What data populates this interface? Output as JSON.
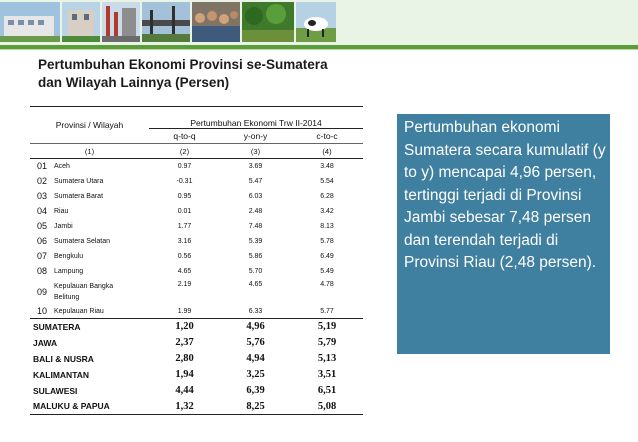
{
  "slide": {
    "title_line1": "Pertumbuhan Ekonomi Provinsi se-Sumatera",
    "title_line2": "dan Wilayah Lainnya (Persen)"
  },
  "table": {
    "col_region": "Provinsi / Wilayah",
    "col_group": "Pertumbuhan Ekonomi Trw II-2014",
    "sub_cols": [
      "q-to-q",
      "y-on-y",
      "c-to-c"
    ],
    "col_numbers": [
      "(1)",
      "(2)",
      "(3)",
      "(4)"
    ],
    "provinces": [
      {
        "no": "01",
        "name": "Aceh",
        "qtoq": "0.97",
        "yony": "3.69",
        "ctoc": "3.48"
      },
      {
        "no": "02",
        "name": "Sumatera Utara",
        "qtoq": "-0.31",
        "yony": "5.47",
        "ctoc": "5.54"
      },
      {
        "no": "03",
        "name": "Sumatera Barat",
        "qtoq": "0.95",
        "yony": "6.03",
        "ctoc": "6.28"
      },
      {
        "no": "04",
        "name": "Riau",
        "qtoq": "0.01",
        "yony": "2.48",
        "ctoc": "3.42"
      },
      {
        "no": "05",
        "name": "Jambi",
        "qtoq": "1.77",
        "yony": "7.48",
        "ctoc": "8.13"
      },
      {
        "no": "06",
        "name": "Sumatera Selatan",
        "qtoq": "3.16",
        "yony": "5.39",
        "ctoc": "5.78"
      },
      {
        "no": "07",
        "name": "Bengkulu",
        "qtoq": "0.56",
        "yony": "5.86",
        "ctoc": "6.49"
      },
      {
        "no": "08",
        "name": "Lampung",
        "qtoq": "4.65",
        "yony": "5.70",
        "ctoc": "5.49"
      },
      {
        "no": "09",
        "name_line1": "Kepulauan Bangka",
        "name_line2": "Belitung",
        "qtoq": "2.19",
        "yony": "4.65",
        "ctoc": "4.78"
      },
      {
        "no": "10",
        "name": "Kepulauan Riau",
        "qtoq": "1.99",
        "yony": "6.33",
        "ctoc": "5.77"
      }
    ],
    "regions": [
      {
        "name": "SUMATERA",
        "qtoq": "1,20",
        "yony": "4,96",
        "ctoc": "5,19"
      },
      {
        "name": "JAWA",
        "qtoq": "2,37",
        "yony": "5,76",
        "ctoc": "5,79"
      },
      {
        "name": "BALI & NUSRA",
        "qtoq": "2,80",
        "yony": "4,94",
        "ctoc": "5,13"
      },
      {
        "name": "KALIMANTAN",
        "qtoq": "1,94",
        "yony": "3,25",
        "ctoc": "3,51"
      },
      {
        "name": "SULAWESI",
        "qtoq": "4,44",
        "yony": "6,39",
        "ctoc": "6,51"
      },
      {
        "name": "MALUKU & PAPUA",
        "qtoq": "1,32",
        "yony": "8,25",
        "ctoc": "5,08"
      }
    ]
  },
  "info_box": {
    "text": "Pertumbuhan ekonomi Sumatera secara kumulatif (y to y) mencapai 4,96 persen, tertinggi terjadi di Provinsi Jambi sebesar 7,48 persen dan terendah terjadi di Provinsi Riau (2,48 persen)."
  },
  "colors": {
    "accent_green": "#5a9e3c",
    "info_box_bg": "#3f7fa0"
  }
}
